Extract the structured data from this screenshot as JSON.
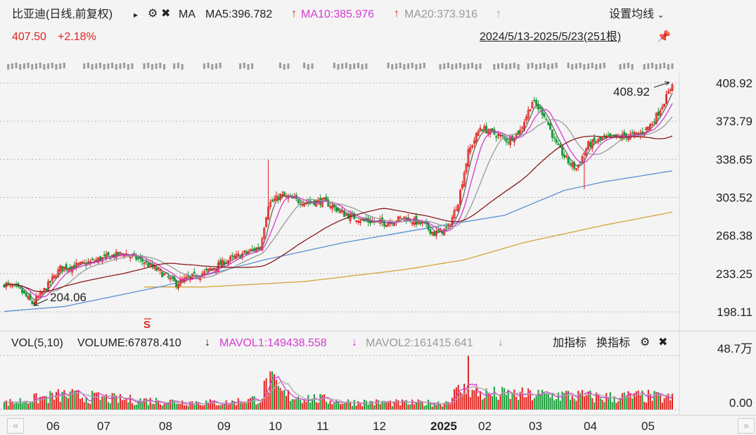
{
  "header": {
    "title": "比亚迪(日线,前复权)",
    "ma_label": "MA",
    "ma5": "MA5:396.782",
    "ma10": "MA10:385.976",
    "ma20": "MA20:373.916",
    "price": "407.50",
    "change": "+2.18%",
    "settings": "设置均线",
    "range": "2024/5/13-2025/5/23(251根)"
  },
  "volume_header": {
    "vol": "VOL(5,10)",
    "volume": "VOLUME:67878.410",
    "mavol1": "MAVOL1:149438.558",
    "mavol2": "MAVOL2:161415.641",
    "add_indicator": "加指标",
    "switch_indicator": "换指标"
  },
  "colors": {
    "up": "#e0211d",
    "down": "#1a9b39",
    "ma5": "#666666",
    "ma10": "#d63bd1",
    "ma20": "#9a9a9a",
    "ma60": "#8b1a1a",
    "ma120": "#5b8fd4",
    "ma250": "#d4a53a"
  },
  "chart_data": {
    "type": "candlestick",
    "y_ticks": [
      "408.92",
      "373.79",
      "338.65",
      "303.52",
      "268.38",
      "233.25",
      "198.11"
    ],
    "y_tick_values": [
      408.92,
      373.79,
      338.65,
      303.52,
      268.38,
      233.25,
      198.11
    ],
    "vol_ticks": [
      "48.7万",
      "0.00"
    ],
    "x_labels": [
      "06",
      "07",
      "08",
      "09",
      "10",
      "11",
      "12",
      "2025",
      "02",
      "03",
      "04",
      "05"
    ],
    "annotations": {
      "high": "408.92",
      "low": "204.06",
      "signal": "S"
    },
    "close_anchors": [
      [
        0,
        224
      ],
      [
        8,
        218
      ],
      [
        14,
        206
      ],
      [
        18,
        213
      ],
      [
        28,
        238
      ],
      [
        40,
        242
      ],
      [
        50,
        248
      ],
      [
        60,
        252
      ],
      [
        70,
        244
      ],
      [
        80,
        232
      ],
      [
        86,
        224
      ],
      [
        92,
        229
      ],
      [
        100,
        234
      ],
      [
        110,
        244
      ],
      [
        120,
        252
      ],
      [
        128,
        258
      ],
      [
        132,
        297
      ],
      [
        138,
        305
      ],
      [
        150,
        299
      ],
      [
        160,
        300
      ],
      [
        170,
        288
      ],
      [
        180,
        282
      ],
      [
        190,
        280
      ],
      [
        200,
        285
      ],
      [
        210,
        278
      ],
      [
        215,
        270
      ],
      [
        222,
        275
      ],
      [
        227,
        300
      ],
      [
        232,
        345
      ],
      [
        238,
        368
      ],
      [
        245,
        362
      ],
      [
        252,
        356
      ],
      [
        258,
        365
      ],
      [
        264,
        392
      ],
      [
        270,
        380
      ],
      [
        276,
        352
      ],
      [
        282,
        336
      ],
      [
        286,
        330
      ],
      [
        292,
        352
      ],
      [
        300,
        358
      ],
      [
        310,
        360
      ],
      [
        318,
        362
      ],
      [
        324,
        372
      ],
      [
        330,
        392
      ],
      [
        334,
        407.5
      ]
    ],
    "volume_anchors": [
      [
        0,
        6
      ],
      [
        30,
        13
      ],
      [
        60,
        9
      ],
      [
        90,
        7
      ],
      [
        110,
        6
      ],
      [
        128,
        10
      ],
      [
        132,
        26
      ],
      [
        140,
        13
      ],
      [
        170,
        7
      ],
      [
        200,
        6
      ],
      [
        220,
        6
      ],
      [
        228,
        18
      ],
      [
        238,
        14
      ],
      [
        260,
        13
      ],
      [
        280,
        13
      ],
      [
        300,
        11
      ],
      [
        320,
        12
      ],
      [
        334,
        10
      ]
    ]
  }
}
